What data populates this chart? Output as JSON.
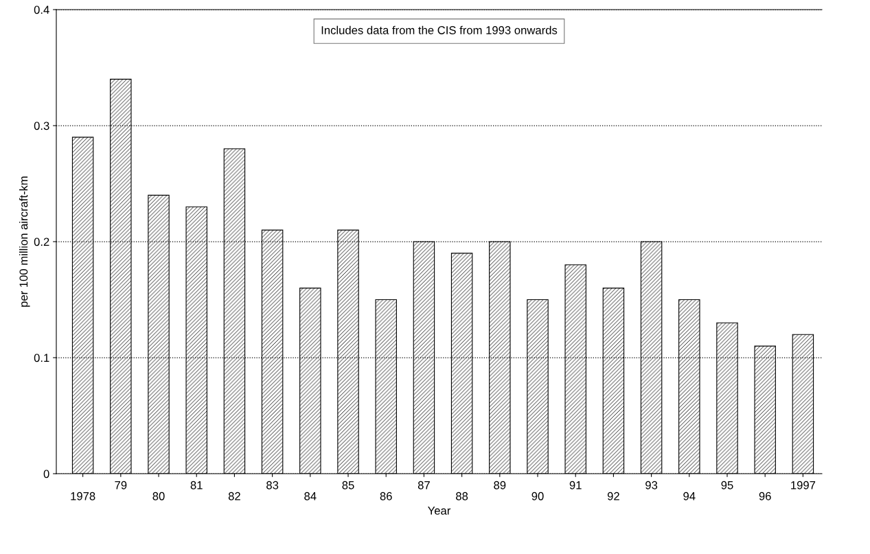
{
  "chart_data": {
    "type": "bar",
    "xlabel": "Year",
    "ylabel": "per 100 million aircraft-km",
    "categories": [
      "1978",
      "79",
      "80",
      "81",
      "82",
      "83",
      "84",
      "85",
      "86",
      "87",
      "88",
      "89",
      "90",
      "91",
      "92",
      "93",
      "94",
      "95",
      "96",
      "1997"
    ],
    "values": [
      0.29,
      0.34,
      0.24,
      0.23,
      0.28,
      0.21,
      0.16,
      0.21,
      0.15,
      0.2,
      0.19,
      0.2,
      0.15,
      0.18,
      0.16,
      0.2,
      0.15,
      0.13,
      0.11,
      0.12
    ],
    "color": "#000000",
    "ylim": [
      0,
      0.4
    ],
    "yticks": [
      {
        "value": 0,
        "label": "0"
      },
      0.1,
      0.2,
      0.3,
      0.4
    ],
    "grid": "y",
    "line_style": "dotted",
    "annotations": [
      "Includes data from the CIS from 1993 onwards"
    ]
  }
}
